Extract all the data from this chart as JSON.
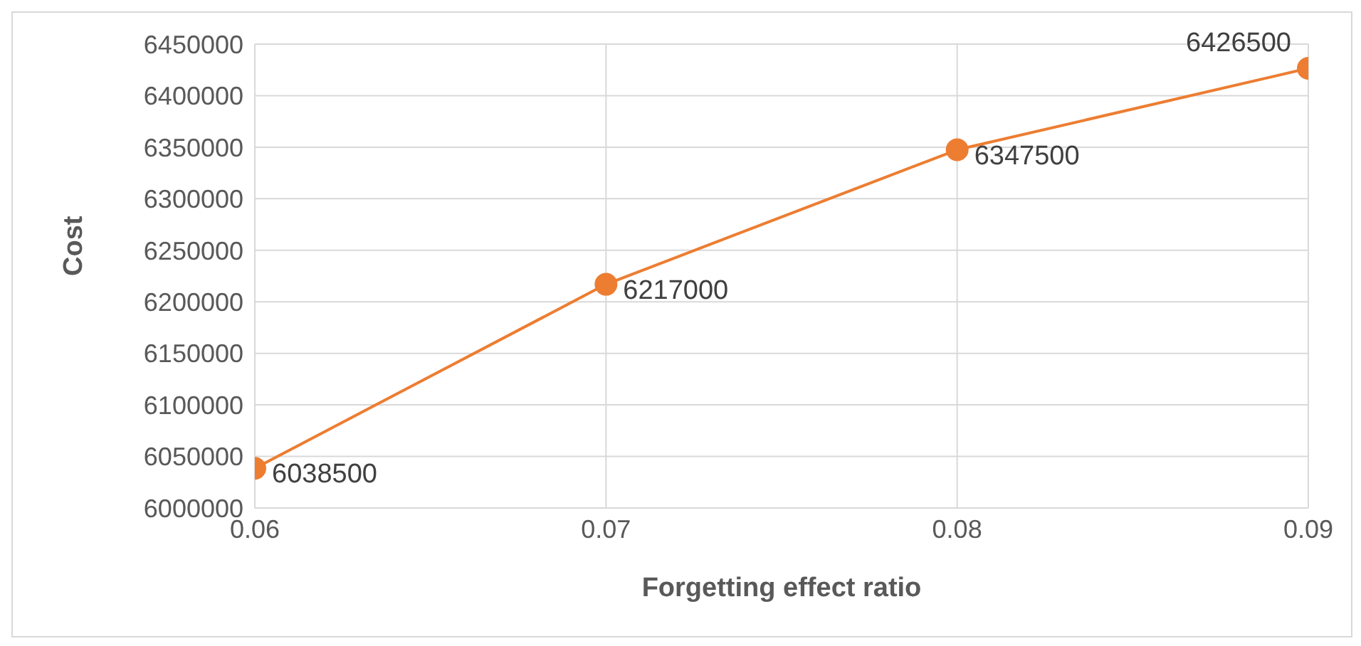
{
  "chart_data": {
    "type": "line",
    "xlabel": "Forgetting effect ratio",
    "ylabel": "Cost",
    "x": [
      0.06,
      0.07,
      0.08,
      0.09
    ],
    "series": [
      {
        "color": "#ed7d31",
        "values": [
          6038500,
          6217000,
          6347500,
          6426500
        ]
      }
    ],
    "xlim": [
      0.06,
      0.09
    ],
    "xticks": [
      0.06,
      0.07,
      0.08,
      0.09
    ],
    "ylim": [
      6000000,
      6450000
    ],
    "yticks": [
      6000000,
      6050000,
      6100000,
      6150000,
      6200000,
      6250000,
      6300000,
      6350000,
      6400000,
      6450000
    ],
    "grid": true,
    "marker": "circle",
    "line_style": "solid",
    "data_labels": true,
    "legend": false
  }
}
